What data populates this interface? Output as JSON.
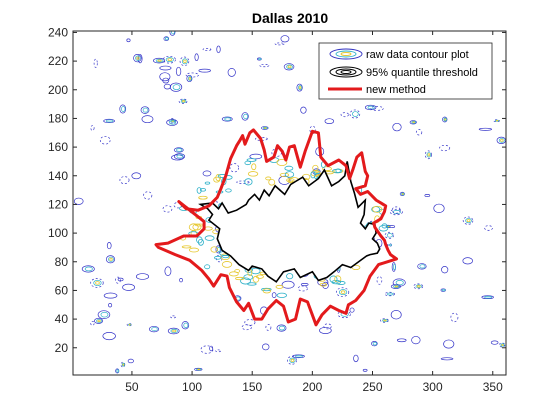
{
  "chart_data": {
    "type": "contour",
    "title": "Dallas 2010",
    "xlabel": "",
    "ylabel": "",
    "xlim": [
      1,
      361
    ],
    "ylim": [
      1,
      241
    ],
    "xticks": [
      50,
      100,
      150,
      200,
      250,
      300,
      350
    ],
    "yticks": [
      20,
      40,
      60,
      80,
      100,
      120,
      140,
      160,
      180,
      200,
      220,
      240
    ],
    "grid": false,
    "legend_position": "top-right",
    "legend": [
      {
        "label": "raw data contour plot",
        "style": "contour-lines"
      },
      {
        "label": "95% quantile threshold",
        "style": "black-contour"
      },
      {
        "label": "new method",
        "style": "red-line"
      }
    ],
    "series": [
      {
        "name": "new method",
        "color": "#e31a1c",
        "x": [
          270,
          255,
          248,
          243,
          236,
          230,
          228,
          222,
          215,
          208,
          203,
          196,
          190,
          186,
          180,
          176,
          170,
          163,
          158,
          152,
          147,
          143,
          137,
          131,
          129,
          124,
          118,
          114,
          108,
          98,
          86,
          72,
          70,
          80,
          93,
          104,
          110,
          110,
          95,
          89,
          95,
          105,
          114,
          121,
          124,
          128,
          132,
          137,
          140,
          142,
          144,
          148,
          151,
          157,
          160,
          162,
          168,
          171,
          175,
          178,
          181,
          185,
          190,
          194,
          200,
          205,
          207,
          213,
          222,
          228,
          231,
          234,
          237,
          241,
          244,
          246,
          244,
          236,
          240,
          246,
          253,
          261,
          260,
          257,
          251,
          252,
          257,
          260,
          261,
          263,
          265,
          270
        ],
        "y": [
          82,
          78,
          70,
          60,
          53,
          50,
          44,
          46,
          49,
          43,
          36,
          52,
          54,
          40,
          38,
          49,
          53,
          47,
          40,
          40,
          51,
          46,
          52,
          62,
          70,
          71,
          63,
          68,
          74,
          81,
          85,
          90,
          92,
          93,
          98,
          98,
          103,
          108,
          118,
          122,
          117,
          116,
          119,
          125,
          131,
          140,
          152,
          161,
          165,
          168,
          162,
          170,
          172,
          166,
          158,
          150,
          153,
          161,
          157,
          151,
          160,
          161,
          146,
          157,
          171,
          170,
          153,
          147,
          151,
          147,
          138,
          145,
          153,
          156,
          143,
          140,
          133,
          131,
          127,
          129,
          123,
          119,
          115,
          110,
          107,
          104,
          98,
          95,
          92,
          88,
          85,
          82
        ]
      },
      {
        "name": "95% quantile threshold",
        "color": "#000000",
        "x": [
          245,
          232,
          225,
          218,
          212,
          205,
          200,
          190,
          185,
          176,
          170,
          163,
          158,
          150,
          147,
          139,
          132,
          125,
          121,
          123,
          114,
          117,
          113,
          107,
          117,
          122,
          125,
          130,
          137,
          145,
          147,
          152,
          156,
          160,
          164,
          169,
          173,
          177,
          182,
          186,
          192,
          197,
          205,
          210,
          216,
          222,
          227,
          229,
          232,
          235,
          238,
          244,
          243,
          240,
          244,
          247,
          252,
          253,
          250,
          254,
          256,
          254,
          248,
          245
        ],
        "y": [
          84,
          76,
          78,
          73,
          69,
          67,
          73,
          69,
          75,
          73,
          66,
          70,
          75,
          77,
          74,
          78,
          84,
          88,
          96,
          103,
          109,
          113,
          117,
          120,
          121,
          117,
          121,
          114,
          116,
          120,
          123,
          127,
          123,
          130,
          126,
          133,
          130,
          127,
          134,
          136,
          139,
          133,
          138,
          144,
          133,
          136,
          140,
          150,
          136,
          128,
          118,
          123,
          113,
          107,
          103,
          107,
          106,
          100,
          96,
          93,
          89,
          86,
          85,
          84
        ]
      }
    ]
  }
}
